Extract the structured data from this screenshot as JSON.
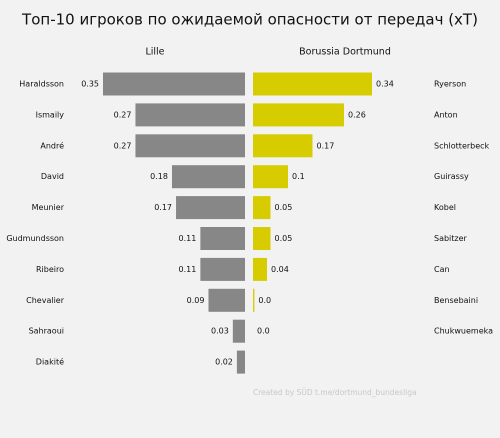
{
  "title": "Топ-10 игроков по ожидаемой опасности от передач (xT)",
  "footer": "Created by SÜD t.me/dortmund_bundesliga",
  "chart_data": [
    {
      "type": "bar",
      "orientation": "horizontal",
      "direction": "left",
      "title": "Lille",
      "color": "#878787",
      "categories": [
        "Haraldsson",
        "Ismaily",
        "André",
        "David",
        "Meunier",
        "Gudmundsson",
        "Ribeiro",
        "Chevalier",
        "Sahraoui",
        "Diakité"
      ],
      "values": [
        0.35,
        0.27,
        0.27,
        0.18,
        0.17,
        0.11,
        0.11,
        0.09,
        0.03,
        0.02
      ],
      "xlim": [
        0,
        0.35
      ]
    },
    {
      "type": "bar",
      "orientation": "horizontal",
      "direction": "right",
      "title": "Borussia Dortmund",
      "color": "#d6cc00",
      "categories": [
        "Ryerson",
        "Anton",
        "Schlotterbeck",
        "Guirassy",
        "Kobel",
        "Sabitzer",
        "Can",
        "Bensebaini",
        "Chukwuemeka"
      ],
      "values": [
        0.34,
        0.26,
        0.17,
        0.1,
        0.05,
        0.05,
        0.04,
        0.004,
        0
      ],
      "value_labels": [
        "0.34",
        "0.26",
        "0.17",
        "0.1",
        "0.05",
        "0.05",
        "0.04",
        "0.0",
        "0.0"
      ],
      "xlim": [
        0,
        0.34
      ]
    }
  ]
}
